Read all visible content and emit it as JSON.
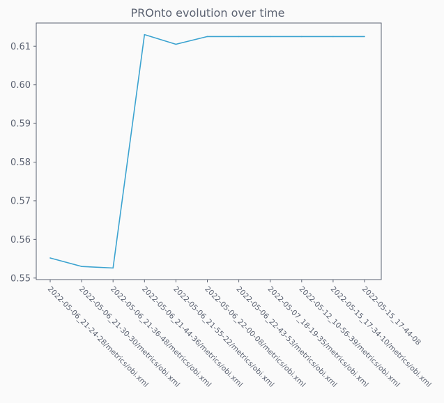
{
  "chart_data": {
    "type": "line",
    "title": "PROnto evolution over time",
    "xlabel": "",
    "ylabel": "",
    "categories": [
      "2022-05-06_21-24-28/metrics/obi.xml",
      "2022-05-06_21-30-30/metrics/obi.xml",
      "2022-05-06_21-36-48/metrics/obi.xml",
      "2022-05-06_21-44-36/metrics/obi.xml",
      "2022-05-06_21-55-22/metrics/obi.xml",
      "2022-05-06_22-00-08/metrics/obi.xml",
      "2022-05-06_22-43-53/metrics/obi.xml",
      "2022-05-07_18-19-35/metrics/obi.xml",
      "2022-05-12_10-56-39/metrics/obi.xml",
      "2022-05-15_17-34-10/metrics/obi.xml",
      "2022-05-15_17-44-08"
    ],
    "series": [
      {
        "values": [
          0.5552,
          0.553,
          0.5526,
          0.613,
          0.6105,
          0.6125,
          0.6125,
          0.6125,
          0.6125,
          0.6125,
          0.6125
        ]
      }
    ],
    "yticks": [
      0.55,
      0.56,
      0.57,
      0.58,
      0.59,
      0.6,
      0.61
    ],
    "ytick_labels": [
      "0.55",
      "0.56",
      "0.57",
      "0.58",
      "0.59",
      "0.60",
      "0.61"
    ],
    "ylim": [
      0.5496,
      0.616
    ],
    "grid": false,
    "legend": "none",
    "colors": {
      "line": "#3ba3d0",
      "axis": "#5b6271",
      "plot_background": "#fafafa",
      "text": "#5b6271"
    }
  }
}
